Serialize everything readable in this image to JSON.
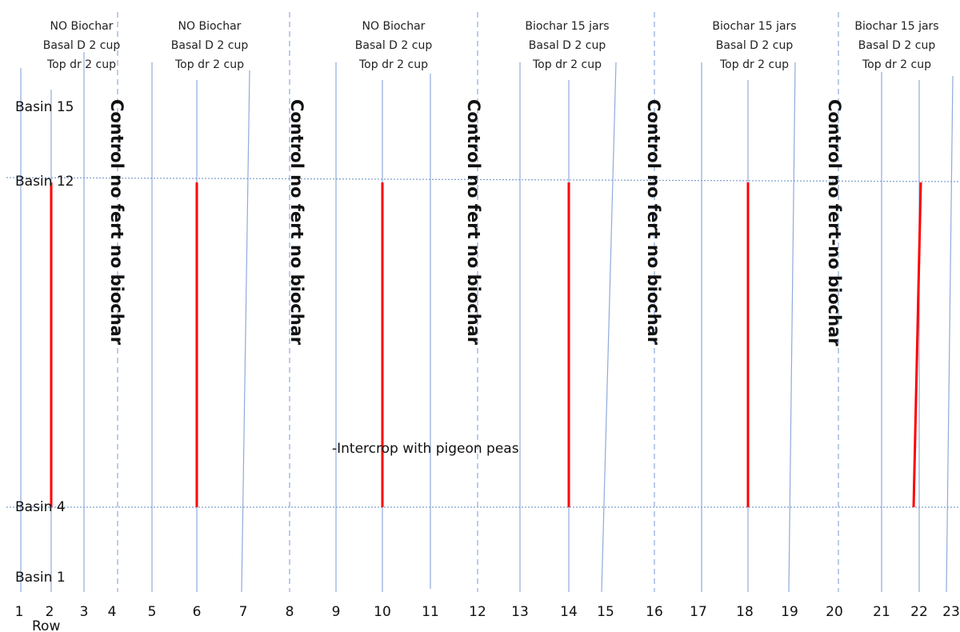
{
  "treatments": [
    {
      "lines": [
        "NO Biochar",
        "Basal D 2 cup",
        "Top dr 2 cup"
      ]
    },
    {
      "lines": [
        "NO Biochar",
        "Basal D 2 cup",
        "Top dr 2 cup"
      ]
    },
    {
      "lines": [
        "NO Biochar",
        "Basal D 2 cup",
        "Top dr 2 cup"
      ]
    },
    {
      "lines": [
        "Biochar 15 jars",
        "Basal D 2 cup",
        "Top dr 2 cup"
      ]
    },
    {
      "lines": [
        "Biochar 15 jars",
        "Basal D 2 cup",
        "Top dr 2 cup"
      ]
    },
    {
      "lines": [
        "Biochar 15 jars",
        "Basal D 2 cup",
        "Top dr 2 cup"
      ]
    }
  ],
  "controls": [
    "Control no fert no biochar",
    "Control no fert no biochar",
    "Control no fert no biochar",
    "Control no fert no biochar",
    "Control no fert-no biochar"
  ],
  "basins": [
    "Basin 15",
    "Basin 12",
    "Basin 4",
    "Basin 1"
  ],
  "rows": [
    "1",
    "2",
    "3",
    "4",
    "5",
    "6",
    "7",
    "8",
    "9",
    "10",
    "11",
    "12",
    "13",
    "14",
    "15",
    "16",
    "17",
    "18",
    "19",
    "20",
    "21",
    "22",
    "23"
  ],
  "row_axis_label": "Row",
  "intercrop_note": "-Intercrop with pigeon peas",
  "colors": {
    "row_line": "#8faadc",
    "basin_line": "#7f9fd0",
    "red_line": "#ff0000",
    "text": "#111111"
  }
}
